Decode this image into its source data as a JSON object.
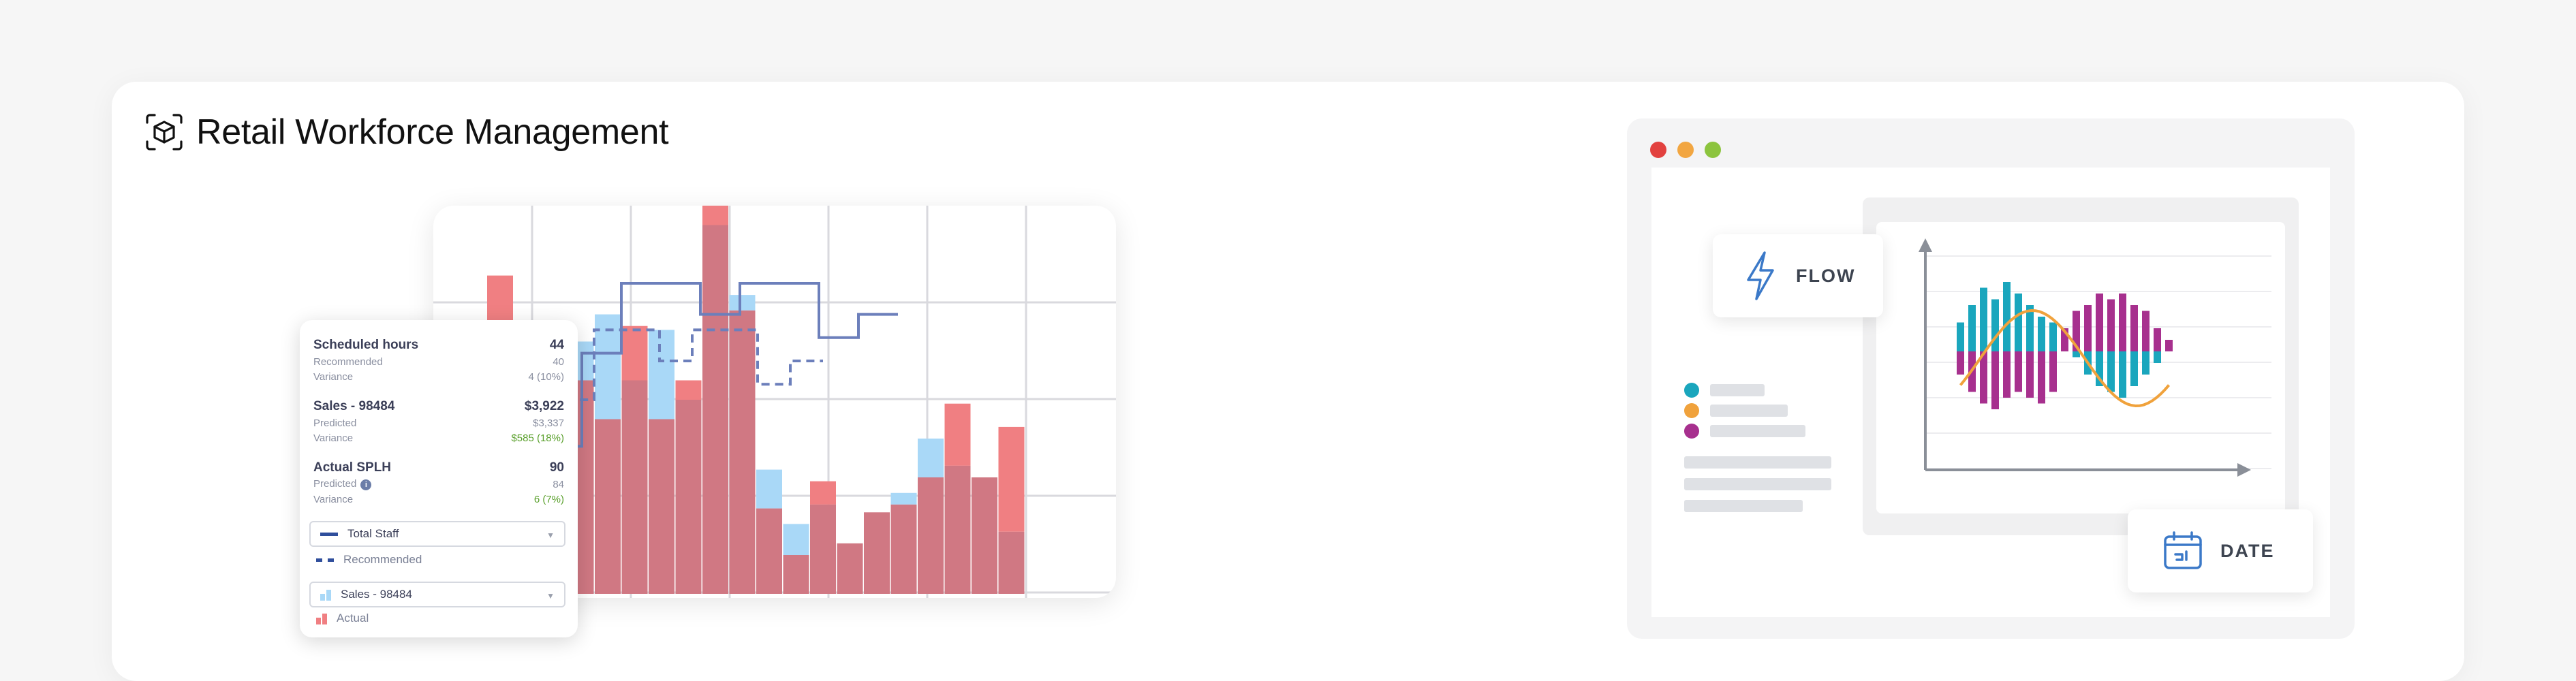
{
  "header": {
    "title": "Retail Workforce Management",
    "icon": "ar-cube-icon"
  },
  "info_panel": {
    "scheduled_hours": {
      "label": "Scheduled hours",
      "value": "44",
      "recommended_label": "Recommended",
      "recommended_value": "40",
      "variance_label": "Variance",
      "variance_value": "4 (10%)"
    },
    "sales": {
      "label": "Sales - 98484",
      "value": "$3,922",
      "predicted_label": "Predicted",
      "predicted_value": "$3,337",
      "variance_label": "Variance",
      "variance_value": "$585 (18%)"
    },
    "splh": {
      "label": "Actual SPLH",
      "value": "90",
      "predicted_label": "Predicted",
      "predicted_value": "84",
      "variance_label": "Variance",
      "variance_value": "6 (7%)"
    },
    "staff_select": "Total Staff",
    "staff_legend": "Recommended",
    "sales_select": "Sales - 98484",
    "sales_legend": "Actual"
  },
  "right_mock": {
    "flow_label": "FLOW",
    "date_label": "DATE",
    "window_dots": [
      "#e2413f",
      "#f2a641",
      "#8cc43e"
    ],
    "legend_colors": [
      "#1aa6bd",
      "#f0a23c",
      "#a7308e"
    ]
  },
  "colors": {
    "predicted_bar": "#a9d8f7",
    "actual_bar": "#f07f82",
    "overlap": "#d07883",
    "staff_line": "#6c7fbb"
  },
  "chart_data": [
    {
      "type": "bar",
      "series": [
        {
          "name": "Sales - 98484",
          "values": [
            0.2,
            0.25,
            0.55,
            0.45,
            0.55,
            0.65,
            0.72,
            0.55,
            0.68,
            0.5,
            0.95,
            0.77,
            0.32,
            0.18,
            0.23,
            0.13,
            0.21,
            0.26,
            0.4,
            0.33,
            0.3,
            0.16
          ]
        },
        {
          "name": "Actual",
          "values": [
            0.2,
            0.23,
            0.82,
            0.65,
            0.45,
            0.55,
            0.45,
            0.69,
            0.45,
            0.55,
            1.0,
            0.73,
            0.22,
            0.1,
            0.29,
            0.13,
            0.21,
            0.23,
            0.3,
            0.49,
            0.3,
            0.43
          ]
        },
        {
          "name": "Total Staff",
          "values": [
            0.38,
            0.38,
            0.62,
            0.8,
            0.8,
            0.72,
            0.8,
            0.8,
            0.66,
            0.72
          ]
        }
      ]
    },
    {
      "type": "bar",
      "series": [
        {
          "name": "teal",
          "values": [
            0.25,
            0.4,
            0.55,
            0.45,
            0.6,
            0.5,
            0.4,
            0.3,
            0.25,
            0.05,
            -0.05,
            -0.2,
            -0.3,
            -0.35,
            -0.4,
            -0.3,
            -0.2,
            -0.1,
            0.05
          ]
        },
        {
          "name": "magenta",
          "values": [
            -0.2,
            -0.35,
            -0.45,
            -0.5,
            -0.4,
            -0.35,
            -0.4,
            -0.45,
            -0.35,
            0.2,
            0.35,
            0.4,
            0.5,
            0.45,
            0.5,
            0.4,
            0.35,
            0.2,
            0.1
          ]
        }
      ]
    }
  ]
}
